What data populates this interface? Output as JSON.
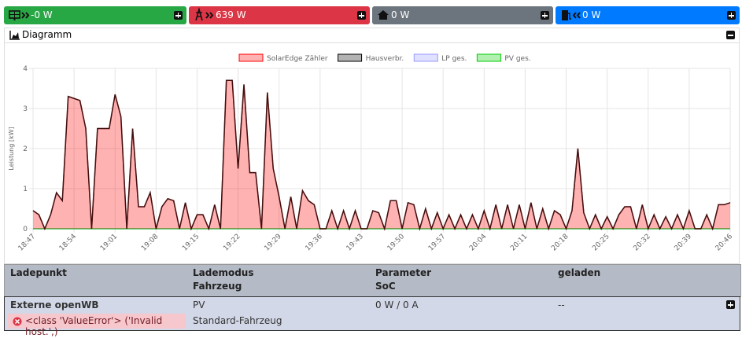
{
  "cards": [
    {
      "value": "-0 W",
      "color": "#28a745"
    },
    {
      "value": "639 W",
      "color": "#dc3545"
    },
    {
      "value": "0 W",
      "color": "#6c757d"
    },
    {
      "value": "0 W",
      "color": "#007bff"
    }
  ],
  "diagram": {
    "title": "Diagramm"
  },
  "chart_data": {
    "type": "line",
    "ylabel": "Leistung [kW]",
    "x": [
      "18:47",
      null,
      null,
      null,
      null,
      null,
      null,
      "18:54",
      null,
      null,
      null,
      null,
      null,
      null,
      "19:01",
      null,
      null,
      null,
      null,
      null,
      null,
      "19:08",
      null,
      null,
      null,
      null,
      null,
      null,
      "19:15",
      null,
      null,
      null,
      null,
      null,
      null,
      "19:22",
      null,
      null,
      null,
      null,
      null,
      null,
      "19:29",
      null,
      null,
      null,
      null,
      null,
      null,
      "19:36",
      null,
      null,
      null,
      null,
      null,
      null,
      "19:43",
      null,
      null,
      null,
      null,
      null,
      null,
      "19:50",
      null,
      null,
      null,
      null,
      null,
      null,
      "19:57",
      null,
      null,
      null,
      null,
      null,
      null,
      "20:04",
      null,
      null,
      null,
      null,
      null,
      null,
      "20:11",
      null,
      null,
      null,
      null,
      null,
      null,
      "20:18",
      null,
      null,
      null,
      null,
      null,
      null,
      "20:25",
      null,
      null,
      null,
      null,
      null,
      null,
      "20:32",
      null,
      null,
      null,
      null,
      null,
      null,
      "20:39",
      null,
      null,
      null,
      null,
      null,
      null,
      "20:46"
    ],
    "series": [
      {
        "name": "SolarEdge Zähler",
        "color": "#ff0000",
        "fill": true,
        "values": [
          0.45,
          0.35,
          0,
          0.35,
          0.9,
          0.7,
          3.3,
          3.25,
          3.2,
          2.5,
          0,
          2.5,
          2.5,
          2.5,
          3.35,
          2.8,
          0,
          2.5,
          0.55,
          0.55,
          0.9,
          0,
          0.55,
          0.75,
          0.7,
          0,
          0.65,
          0,
          0.35,
          0.35,
          0,
          0.6,
          0,
          3.7,
          3.7,
          1.5,
          3.6,
          1.4,
          1.4,
          0,
          3.4,
          1.5,
          0.8,
          0,
          0.8,
          0,
          0.95,
          0.7,
          0.6,
          0,
          0,
          0.45,
          0,
          0.45,
          0,
          0.45,
          0,
          0,
          0.45,
          0.4,
          0,
          0.7,
          0.7,
          0,
          0.65,
          0.6,
          0,
          0.5,
          0,
          0.4,
          0,
          0.35,
          0,
          0.35,
          0,
          0.35,
          0,
          0.45,
          0,
          0.6,
          0,
          0.6,
          0,
          0.6,
          0,
          0.65,
          0,
          0.5,
          0,
          0.45,
          0.35,
          0,
          0.45,
          2.0,
          0.4,
          0,
          0.35,
          0,
          0.3,
          0,
          0.35,
          0.55,
          0.55,
          0,
          0.6,
          0,
          0.35,
          0,
          0.3,
          0,
          0.35,
          0,
          0.45,
          0,
          0,
          0.35,
          0,
          0.6,
          0.6,
          0.65
        ]
      },
      {
        "name": "Hausverbr.",
        "color": "#000000",
        "fill": false,
        "values": [
          0.45,
          0.35,
          0,
          0.35,
          0.9,
          0.7,
          3.3,
          3.25,
          3.2,
          2.5,
          0,
          2.5,
          2.5,
          2.5,
          3.35,
          2.8,
          0,
          2.5,
          0.55,
          0.55,
          0.9,
          0,
          0.55,
          0.75,
          0.7,
          0,
          0.65,
          0,
          0.35,
          0.35,
          0,
          0.6,
          0,
          3.7,
          3.7,
          1.5,
          3.6,
          1.4,
          1.4,
          0,
          3.4,
          1.5,
          0.8,
          0,
          0.8,
          0,
          0.95,
          0.7,
          0.6,
          0,
          0,
          0.45,
          0,
          0.45,
          0,
          0.45,
          0,
          0,
          0.45,
          0.4,
          0,
          0.7,
          0.7,
          0,
          0.65,
          0.6,
          0,
          0.5,
          0,
          0.4,
          0,
          0.35,
          0,
          0.35,
          0,
          0.35,
          0,
          0.45,
          0,
          0.6,
          0,
          0.6,
          0,
          0.6,
          0,
          0.65,
          0,
          0.5,
          0,
          0.45,
          0.35,
          0,
          0.45,
          2.0,
          0.4,
          0,
          0.35,
          0,
          0.3,
          0,
          0.35,
          0.55,
          0.55,
          0,
          0.6,
          0,
          0.35,
          0,
          0.3,
          0,
          0.35,
          0,
          0.45,
          0,
          0,
          0.35,
          0,
          0.6,
          0.6,
          0.65
        ]
      },
      {
        "name": "LP ges.",
        "color": "#9999ff",
        "fill": false,
        "values": [
          0,
          0,
          0,
          0,
          0,
          0,
          0,
          0,
          0,
          0,
          0,
          0,
          0,
          0,
          0,
          0,
          0,
          0,
          0,
          0,
          0,
          0,
          0,
          0,
          0,
          0,
          0,
          0,
          0,
          0,
          0,
          0,
          0,
          0,
          0,
          0,
          0,
          0,
          0,
          0,
          0,
          0,
          0,
          0,
          0,
          0,
          0,
          0,
          0,
          0,
          0,
          0,
          0,
          0,
          0,
          0,
          0,
          0,
          0,
          0,
          0,
          0,
          0,
          0,
          0,
          0,
          0,
          0,
          0,
          0,
          0,
          0,
          0,
          0,
          0,
          0,
          0,
          0,
          0,
          0,
          0,
          0,
          0,
          0,
          0,
          0,
          0,
          0,
          0,
          0,
          0,
          0,
          0,
          0,
          0,
          0,
          0,
          0,
          0,
          0,
          0,
          0,
          0,
          0,
          0,
          0,
          0,
          0,
          0,
          0,
          0,
          0,
          0,
          0,
          0,
          0,
          0,
          0,
          0,
          0
        ]
      },
      {
        "name": "PV ges.",
        "color": "#00cc00",
        "fill": false,
        "values": [
          0,
          0,
          0,
          0,
          0,
          0,
          0,
          0,
          0,
          0,
          0,
          0,
          0,
          0,
          0,
          0,
          0,
          0,
          0,
          0,
          0,
          0,
          0,
          0,
          0,
          0,
          0,
          0,
          0,
          0,
          0,
          0,
          0,
          0,
          0,
          0,
          0,
          0,
          0,
          0,
          0,
          0,
          0,
          0,
          0,
          0,
          0,
          0,
          0,
          0,
          0,
          0,
          0,
          0,
          0,
          0,
          0,
          0,
          0,
          0,
          0,
          0,
          0,
          0,
          0,
          0,
          0,
          0,
          0,
          0,
          0,
          0,
          0,
          0,
          0,
          0,
          0,
          0,
          0,
          0,
          0,
          0,
          0,
          0,
          0,
          0,
          0,
          0,
          0,
          0,
          0,
          0,
          0,
          0,
          0,
          0,
          0,
          0,
          0,
          0,
          0,
          0,
          0,
          0,
          0,
          0,
          0,
          0,
          0,
          0,
          0,
          0,
          0,
          0,
          0,
          0,
          0,
          0,
          0,
          0
        ]
      }
    ],
    "ylim": [
      0,
      4
    ],
    "yticks": [
      0,
      1,
      2,
      3,
      4
    ],
    "grid": true
  },
  "table": {
    "headers": [
      [
        "Ladepunkt"
      ],
      [
        "Lademodus",
        "Fahrzeug"
      ],
      [
        "Parameter",
        "SoC"
      ],
      [
        "geladen"
      ]
    ],
    "rows": [
      {
        "name": "Externe openWB",
        "error": "<class 'ValueError'> ('Invalid host.',)",
        "mode": "PV",
        "vehicle": "Standard-Fahrzeug",
        "parameter": "0 W / 0 A",
        "charged": "--"
      }
    ]
  }
}
